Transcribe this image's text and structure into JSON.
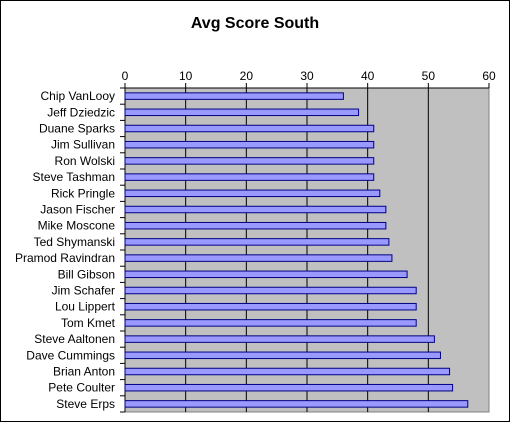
{
  "chart_data": {
    "type": "bar",
    "orientation": "horizontal",
    "title": "Avg Score South",
    "xlabel": "",
    "ylabel": "",
    "xlim": [
      0,
      60
    ],
    "ticks": [
      0,
      10,
      20,
      30,
      40,
      50,
      60
    ],
    "axis_position": "top",
    "grid": true,
    "legend": "none",
    "colors": {
      "bar_fill": "#9999ff",
      "bar_stroke": "#000080",
      "plot_bg": "#c0c0c0"
    },
    "categories": [
      "Chip VanLooy",
      "Jeff Dziedzic",
      "Duane Sparks",
      "Jim Sullivan",
      "Ron Wolski",
      "Steve Tashman",
      "Rick Pringle",
      "Jason Fischer",
      "Mike Moscone",
      "Ted Shymanski",
      "Pramod Ravindran",
      "Bill Gibson",
      "Jim Schafer",
      "Lou Lippert",
      "Tom Kmet",
      "Steve Aaltonen",
      "Dave Cummings",
      "Brian Anton",
      "Pete Coulter",
      "Steve Erps"
    ],
    "values": [
      36,
      38.5,
      41,
      41,
      41,
      41,
      42,
      43,
      43,
      43.5,
      44,
      46.5,
      48,
      48,
      48,
      51,
      52,
      53.5,
      54,
      56.5
    ]
  }
}
